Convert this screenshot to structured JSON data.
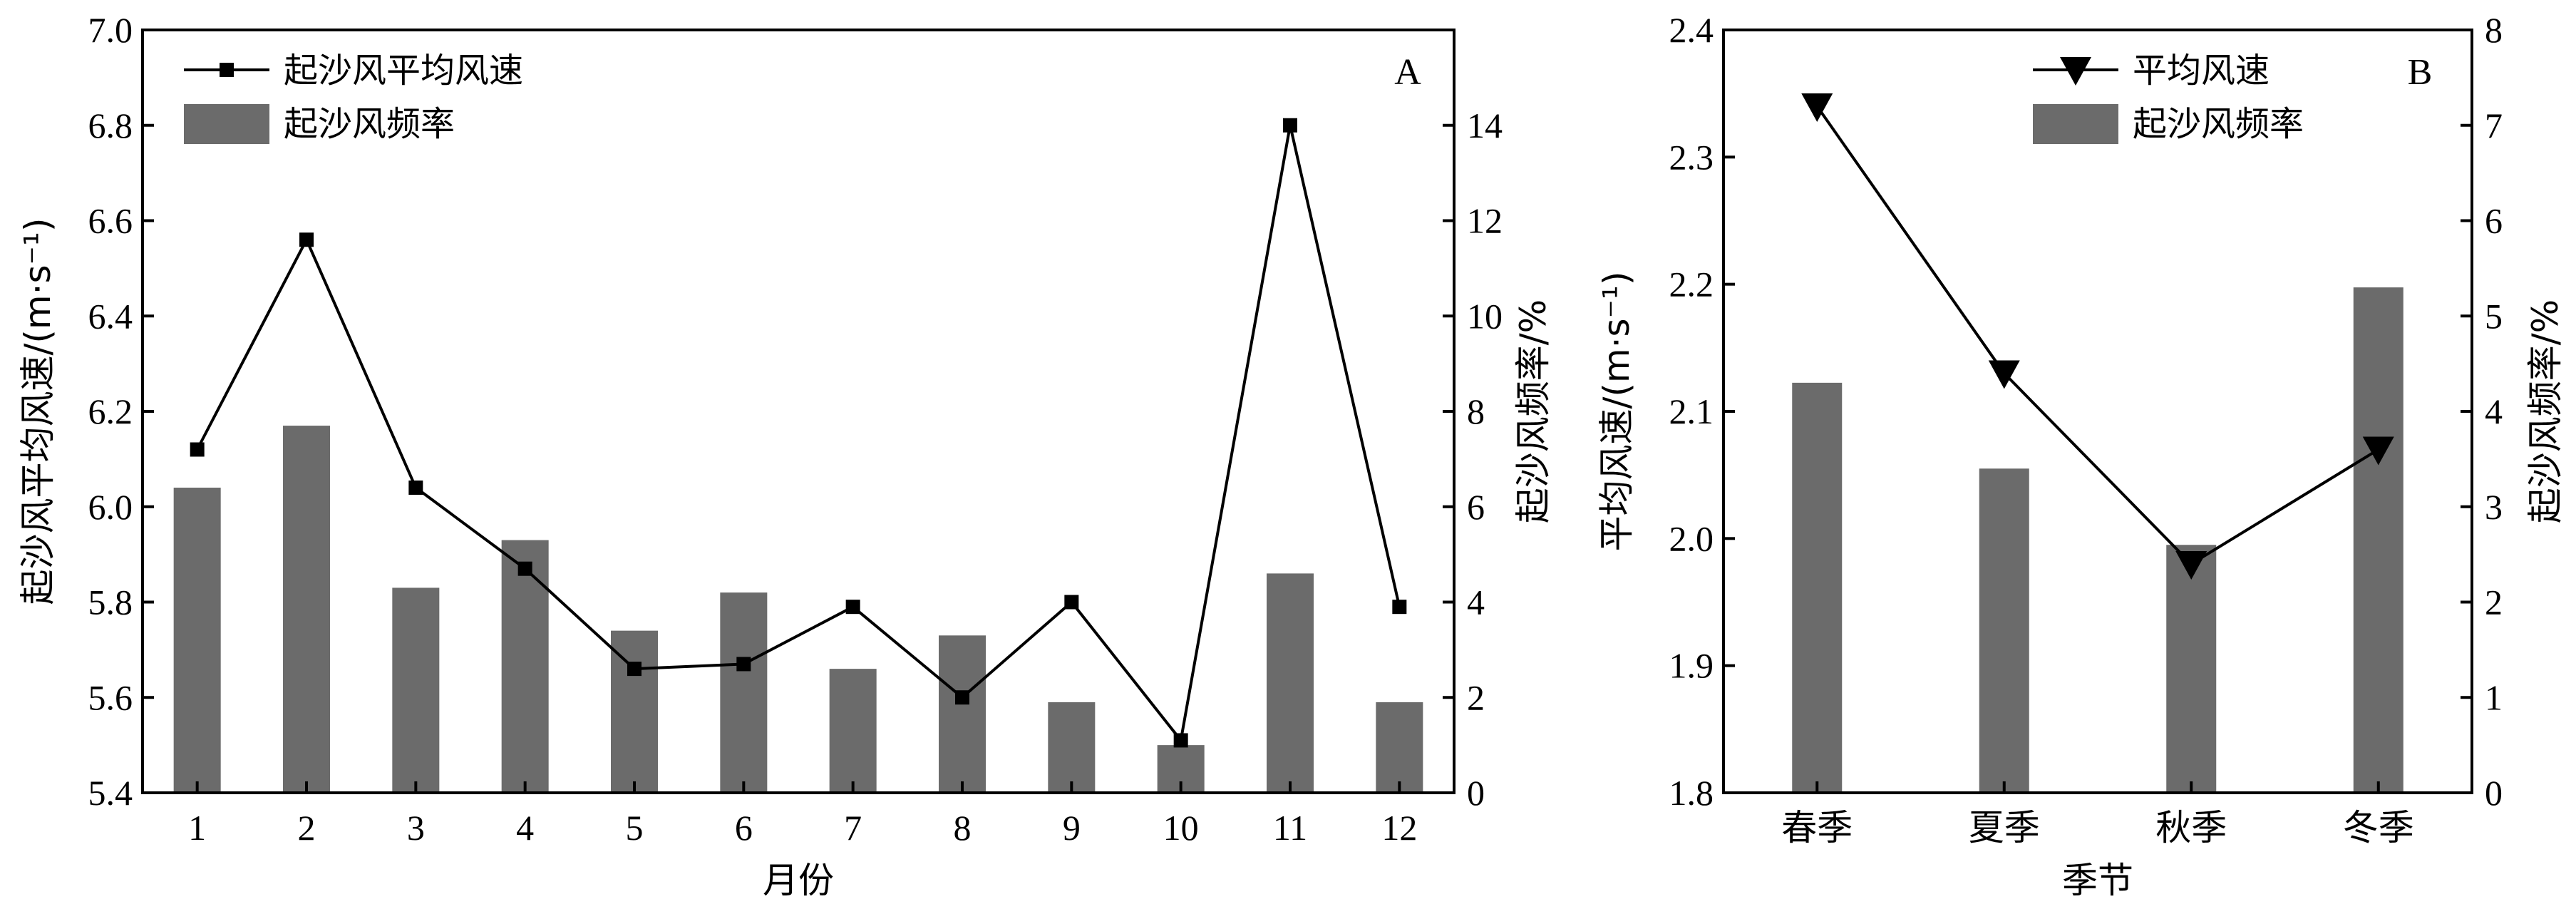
{
  "colors": {
    "bar": "#6b6b6b",
    "line": "#000000",
    "background": "#ffffff"
  },
  "chart_data": [
    {
      "type": "bar+line",
      "panel_label": "A",
      "xlabel": "月份",
      "ylabel_left": "起沙风平均风速/(m·s⁻¹)",
      "ylabel_right": "起沙风频率/%",
      "categories": [
        "1",
        "2",
        "3",
        "4",
        "5",
        "6",
        "7",
        "8",
        "9",
        "10",
        "11",
        "12"
      ],
      "ylim_left": [
        5.4,
        7.0
      ],
      "yticks_left": [
        "5.4",
        "5.6",
        "5.8",
        "6.0",
        "6.2",
        "6.4",
        "6.6",
        "6.8",
        "7.0"
      ],
      "ylim_right": [
        0,
        16
      ],
      "yticks_right": [
        "0",
        "2",
        "4",
        "6",
        "8",
        "10",
        "12",
        "14"
      ],
      "legend_position": "top-left",
      "series": [
        {
          "name": "起沙风平均风速",
          "kind": "line",
          "marker": "square",
          "axis": "left",
          "values": [
            6.12,
            6.56,
            6.04,
            5.87,
            5.66,
            5.67,
            5.79,
            5.6,
            5.8,
            5.51,
            6.8,
            5.79
          ]
        },
        {
          "name": "起沙风频率",
          "kind": "bar",
          "axis": "right",
          "values": [
            6.4,
            7.7,
            4.3,
            5.3,
            3.4,
            4.2,
            2.6,
            3.3,
            1.9,
            1.0,
            4.6,
            1.9
          ]
        }
      ]
    },
    {
      "type": "bar+line",
      "panel_label": "B",
      "xlabel": "季节",
      "ylabel_left": "平均风速/(m·s⁻¹)",
      "ylabel_right": "起沙风频率/%",
      "categories": [
        "春季",
        "夏季",
        "秋季",
        "冬季"
      ],
      "ylim_left": [
        1.8,
        2.4
      ],
      "yticks_left": [
        "1.8",
        "1.9",
        "2.0",
        "2.1",
        "2.2",
        "2.3",
        "2.4"
      ],
      "ylim_right": [
        0,
        8
      ],
      "yticks_right": [
        "0",
        "1",
        "2",
        "3",
        "4",
        "5",
        "6",
        "7",
        "8"
      ],
      "legend_position": "top-right",
      "series": [
        {
          "name": "平均风速",
          "kind": "line",
          "marker": "triangle-down",
          "axis": "left",
          "values": [
            2.34,
            2.13,
            1.98,
            2.07
          ]
        },
        {
          "name": "起沙风频率",
          "kind": "bar",
          "axis": "right",
          "values": [
            4.3,
            3.4,
            2.6,
            5.3
          ]
        }
      ]
    }
  ]
}
